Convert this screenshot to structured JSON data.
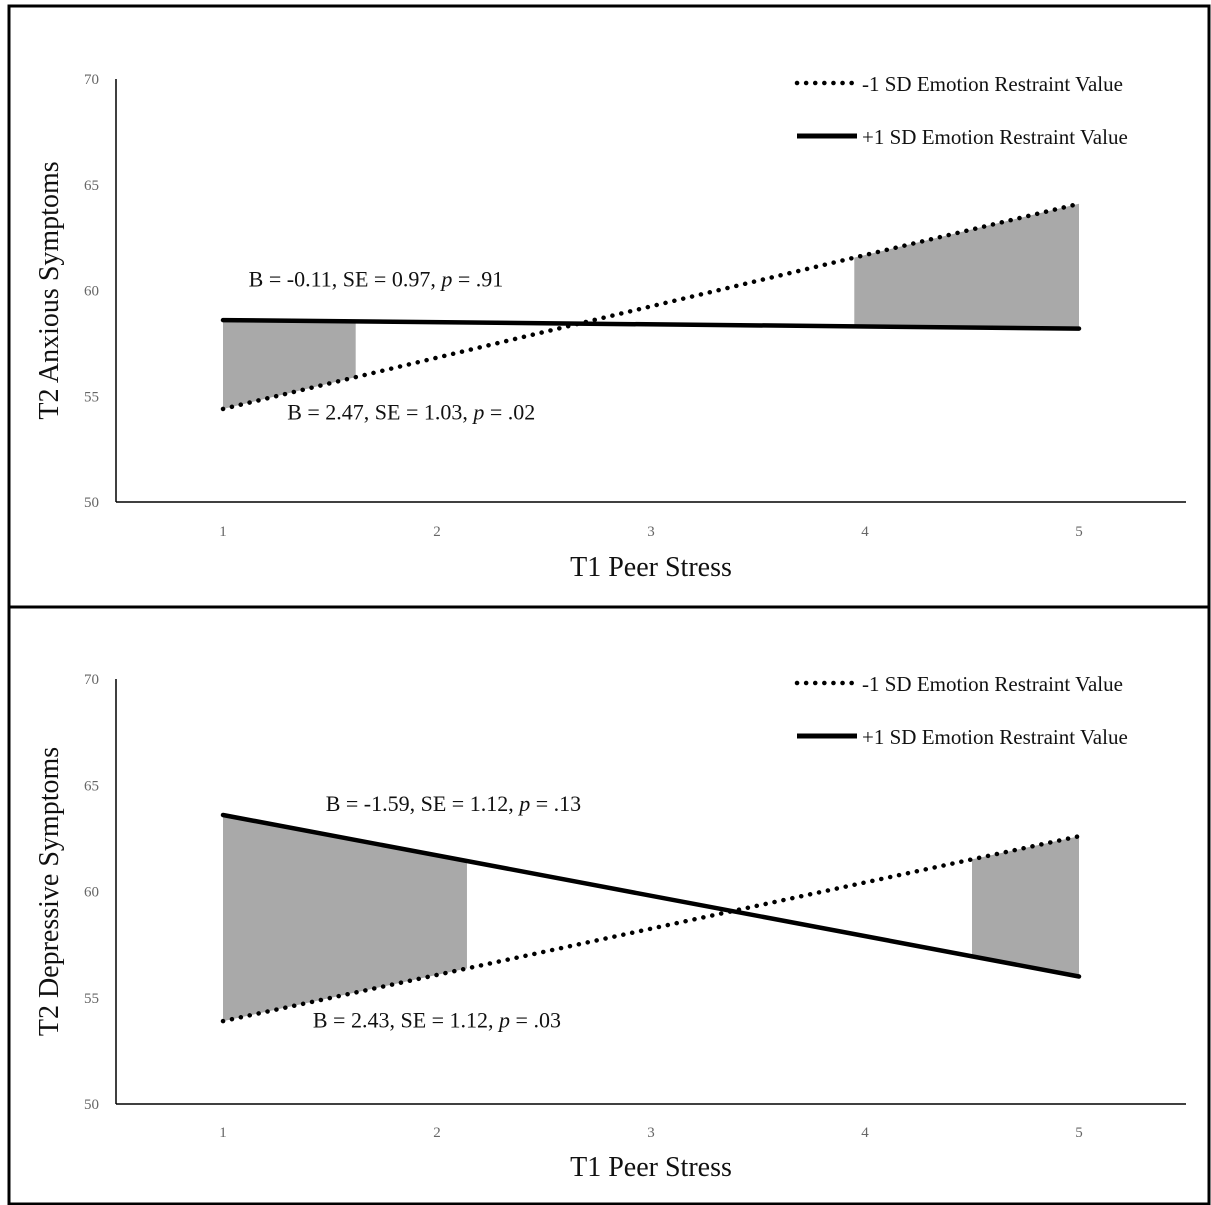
{
  "chart_data": [
    {
      "type": "line",
      "xlabel": "T1 Peer Stress",
      "ylabel": "T2 Anxious Symptoms",
      "x": [
        1,
        5
      ],
      "xticks": [
        1,
        2,
        3,
        4,
        5
      ],
      "yticks": [
        50,
        55,
        60,
        65,
        70
      ],
      "xlim": [
        0.5,
        5.5
      ],
      "ylim": [
        50,
        70
      ],
      "grid": false,
      "legend_position": "top-right",
      "series": [
        {
          "name": "-1 SD Emotion Restraint Value",
          "style": "dotted",
          "values": [
            54.4,
            64.1
          ]
        },
        {
          "name": "+1 SD Emotion Restraint Value",
          "style": "solid",
          "values": [
            58.6,
            58.2
          ]
        }
      ],
      "shaded_regions": [
        {
          "x_start": 1,
          "x_end": 1.62
        },
        {
          "x_start": 3.95,
          "x_end": 5
        }
      ],
      "annotations": [
        {
          "key": "solid",
          "text": "B = -0.11, SE = 0.97, ",
          "p_label": "p",
          "p_value": " = .91",
          "x": 1.12,
          "y": 60.2
        },
        {
          "key": "dotted",
          "text": "B = 2.47, SE = 1.03, ",
          "p_label": "p",
          "p_value": " = .02",
          "x": 1.3,
          "y": 53.9
        }
      ]
    },
    {
      "type": "line",
      "xlabel": "T1 Peer Stress",
      "ylabel": "T2 Depressive Symptoms",
      "x": [
        1,
        5
      ],
      "xticks": [
        1,
        2,
        3,
        4,
        5
      ],
      "yticks": [
        50,
        55,
        60,
        65,
        70
      ],
      "xlim": [
        0.5,
        5.5
      ],
      "ylim": [
        50,
        70
      ],
      "grid": false,
      "legend_position": "top-right",
      "series": [
        {
          "name": "-1 SD Emotion Restraint Value",
          "style": "dotted",
          "values": [
            53.9,
            62.6
          ]
        },
        {
          "name": "+1 SD Emotion Restraint Value",
          "style": "solid",
          "values": [
            63.6,
            56.0
          ]
        }
      ],
      "shaded_regions": [
        {
          "x_start": 1,
          "x_end": 2.14
        },
        {
          "x_start": 4.5,
          "x_end": 5
        }
      ],
      "annotations": [
        {
          "key": "solid",
          "text": "B = -1.59, SE = 1.12, ",
          "p_label": "p",
          "p_value": " = .13",
          "x": 1.48,
          "y": 63.8
        },
        {
          "key": "dotted",
          "text": "B = 2.43, SE = 1.12, ",
          "p_label": "p",
          "p_value": " = .03",
          "x": 1.42,
          "y": 53.6
        }
      ]
    }
  ],
  "colors": {
    "line": "#000000",
    "shade": "#a9a9a9",
    "axis": "#000000",
    "border": "#000000",
    "tick_text": "#666666"
  }
}
